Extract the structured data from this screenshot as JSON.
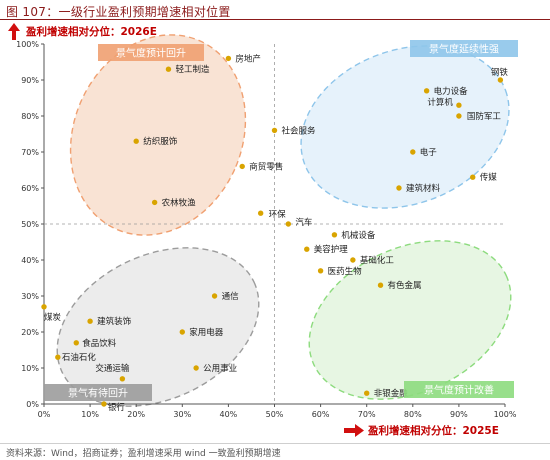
{
  "figure": {
    "title": "图 107：一级行业盈利预期增速相对位置",
    "source": "资料来源：Wind，招商证券；盈利增速采用 wind 一致盈利预期增速"
  },
  "chart_data": {
    "type": "scatter",
    "xlabel": "盈利增速相对分位：2025E",
    "ylabel": "盈利增速相对分位：2026E",
    "xlim": [
      0,
      100
    ],
    "ylim": [
      0,
      100
    ],
    "xticks": [
      "0%",
      "10%",
      "20%",
      "30%",
      "40%",
      "50%",
      "60%",
      "70%",
      "80%",
      "90%",
      "100%"
    ],
    "yticks": [
      "0%",
      "10%",
      "20%",
      "30%",
      "40%",
      "50%",
      "60%",
      "70%",
      "80%",
      "90%",
      "100%"
    ],
    "grid": false,
    "reference_lines": {
      "x": 50,
      "y": 50
    },
    "point_color": "#d9a400",
    "quadrants": [
      {
        "label": "景气度预计回升",
        "color": "#f0a071",
        "fill": "#f7d9c6"
      },
      {
        "label": "景气度延续性强",
        "color": "#8ec5ea",
        "fill": "#ddeef9"
      },
      {
        "label": "景气有待回升",
        "color": "#9c9c9c",
        "fill": "#e6e6e6"
      },
      {
        "label": "景气度预计改善",
        "color": "#8ddb7e",
        "fill": "#dff3da"
      }
    ],
    "points": [
      {
        "name": "房地产",
        "x": 40,
        "y": 96
      },
      {
        "name": "轻工制造",
        "x": 27,
        "y": 93
      },
      {
        "name": "纺织服饰",
        "x": 20,
        "y": 73
      },
      {
        "name": "商贸零售",
        "x": 43,
        "y": 66
      },
      {
        "name": "社会服务",
        "x": 50,
        "y": 76
      },
      {
        "name": "农林牧渔",
        "x": 24,
        "y": 56
      },
      {
        "name": "环保",
        "x": 47,
        "y": 53
      },
      {
        "name": "汽车",
        "x": 53,
        "y": 50
      },
      {
        "name": "钢铁",
        "x": 99,
        "y": 90
      },
      {
        "name": "电力设备",
        "x": 83,
        "y": 87
      },
      {
        "name": "计算机",
        "x": 90,
        "y": 83
      },
      {
        "name": "国防军工",
        "x": 90,
        "y": 80
      },
      {
        "name": "电子",
        "x": 80,
        "y": 70
      },
      {
        "name": "传媒",
        "x": 93,
        "y": 63
      },
      {
        "name": "建筑材料",
        "x": 77,
        "y": 60
      },
      {
        "name": "机械设备",
        "x": 63,
        "y": 47
      },
      {
        "name": "美容护理",
        "x": 57,
        "y": 43
      },
      {
        "name": "基础化工",
        "x": 67,
        "y": 40
      },
      {
        "name": "医药生物",
        "x": 60,
        "y": 37
      },
      {
        "name": "有色金属",
        "x": 73,
        "y": 33
      },
      {
        "name": "非银金融",
        "x": 70,
        "y": 3
      },
      {
        "name": "通信",
        "x": 37,
        "y": 30
      },
      {
        "name": "建筑装饰",
        "x": 10,
        "y": 23
      },
      {
        "name": "家用电器",
        "x": 30,
        "y": 20
      },
      {
        "name": "煤炭",
        "x": 0,
        "y": 27
      },
      {
        "name": "食品饮料",
        "x": 7,
        "y": 17
      },
      {
        "name": "石油石化",
        "x": 3,
        "y": 13
      },
      {
        "name": "公用事业",
        "x": 33,
        "y": 10
      },
      {
        "name": "交通运输",
        "x": 17,
        "y": 7
      },
      {
        "name": "银行",
        "x": 13,
        "y": 0
      }
    ]
  }
}
